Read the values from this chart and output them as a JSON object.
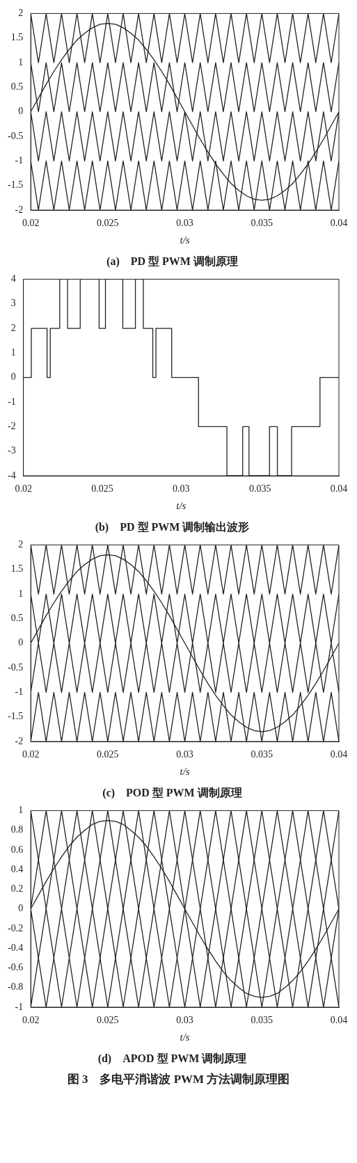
{
  "chart_data": [
    {
      "type": "line",
      "title": "(a)　PD 型 PWM 调制原理",
      "xlabel": "t/s",
      "xlim": [
        0.02,
        0.04
      ],
      "xticks": [
        0.02,
        0.025,
        0.03,
        0.035,
        0.04
      ],
      "ylim": [
        -2,
        2
      ],
      "yticks": [
        -2,
        -1.5,
        -1,
        -0.5,
        0,
        0.5,
        1,
        1.5,
        2
      ],
      "grid": false,
      "legend": false,
      "marker": "none",
      "x": [
        0.02,
        0.0205,
        0.021,
        0.0215,
        0.022,
        0.0225,
        0.023,
        0.0235,
        0.024,
        0.0245,
        0.025,
        0.0255,
        0.026,
        0.0265,
        0.027,
        0.0275,
        0.028,
        0.0285,
        0.029,
        0.0295,
        0.03,
        0.0305,
        0.031,
        0.0315,
        0.032,
        0.0325,
        0.033,
        0.0335,
        0.034,
        0.0345,
        0.035,
        0.0355,
        0.036,
        0.0365,
        0.037,
        0.0375,
        0.038,
        0.0385,
        0.039,
        0.0395,
        0.04
      ],
      "series": [
        {
          "color": "#222222",
          "values": [
            2,
            1,
            2,
            1,
            2,
            1,
            2,
            1,
            2,
            1,
            2,
            1,
            2,
            1,
            2,
            1,
            2,
            1,
            2,
            1,
            2,
            1,
            2,
            1,
            2,
            1,
            2,
            1,
            2,
            1,
            2,
            1,
            2,
            1,
            2,
            1,
            2,
            1,
            2,
            1,
            2
          ]
        },
        {
          "color": "#222222",
          "values": [
            1,
            0,
            1,
            0,
            1,
            0,
            1,
            0,
            1,
            0,
            1,
            0,
            1,
            0,
            1,
            0,
            1,
            0,
            1,
            0,
            1,
            0,
            1,
            0,
            1,
            0,
            1,
            0,
            1,
            0,
            1,
            0,
            1,
            0,
            1,
            0,
            1,
            0,
            1,
            0,
            1
          ]
        },
        {
          "color": "#222222",
          "values": [
            0,
            -1,
            0,
            -1,
            0,
            -1,
            0,
            -1,
            0,
            -1,
            0,
            -1,
            0,
            -1,
            0,
            -1,
            0,
            -1,
            0,
            -1,
            0,
            -1,
            0,
            -1,
            0,
            -1,
            0,
            -1,
            0,
            -1,
            0,
            -1,
            0,
            -1,
            0,
            -1,
            0,
            -1,
            0,
            -1,
            0
          ]
        },
        {
          "color": "#222222",
          "values": [
            -1,
            -2,
            -1,
            -2,
            -1,
            -2,
            -1,
            -2,
            -1,
            -2,
            -1,
            -2,
            -1,
            -2,
            -1,
            -2,
            -1,
            -2,
            -1,
            -2,
            -1,
            -2,
            -1,
            -2,
            -1,
            -2,
            -1,
            -2,
            -1,
            -2,
            -1,
            -2,
            -1,
            -2,
            -1,
            -2,
            -1,
            -2,
            -1,
            -2,
            -1
          ]
        },
        {
          "color": "#222222",
          "values": [
            0,
            0.28,
            0.56,
            0.82,
            1.06,
            1.27,
            1.46,
            1.6,
            1.71,
            1.78,
            1.8,
            1.78,
            1.71,
            1.6,
            1.46,
            1.27,
            1.06,
            0.82,
            0.56,
            0.28,
            0,
            -0.28,
            -0.56,
            -0.82,
            -1.06,
            -1.27,
            -1.46,
            -1.6,
            -1.71,
            -1.78,
            -1.8,
            -1.78,
            -1.71,
            -1.6,
            -1.46,
            -1.27,
            -1.06,
            -0.82,
            -0.56,
            -0.28,
            0
          ]
        }
      ]
    },
    {
      "type": "step",
      "title": "(b)　PD 型 PWM 调制输出波形",
      "xlabel": "t/s",
      "xlim": [
        0.02,
        0.04
      ],
      "xticks": [
        0.02,
        0.025,
        0.03,
        0.035,
        0.04
      ],
      "ylim": [
        -4,
        4
      ],
      "yticks": [
        -4,
        -3,
        -2,
        -1,
        0,
        1,
        2,
        3,
        4
      ],
      "grid": false,
      "legend": false,
      "marker": "none",
      "x": [
        0.02,
        0.0205,
        0.0215,
        0.0217,
        0.0223,
        0.0228,
        0.0236,
        0.0248,
        0.0252,
        0.0263,
        0.0271,
        0.0276,
        0.0282,
        0.0284,
        0.0294,
        0.0311,
        0.0329,
        0.0339,
        0.0343,
        0.0356,
        0.0361,
        0.037,
        0.0388,
        0.04
      ],
      "series": [
        {
          "color": "#222222",
          "values": [
            0,
            2,
            0,
            2,
            4,
            2,
            4,
            2,
            4,
            2,
            4,
            2,
            0,
            2,
            0,
            -2,
            -4,
            -2,
            -4,
            -2,
            -4,
            -2,
            0,
            0
          ]
        }
      ]
    },
    {
      "type": "line",
      "title": "(c)　POD 型 PWM 调制原理",
      "xlabel": "t/s",
      "xlim": [
        0.02,
        0.04
      ],
      "xticks": [
        0.02,
        0.025,
        0.03,
        0.035,
        0.04
      ],
      "ylim": [
        -2,
        2
      ],
      "yticks": [
        -2,
        -1.5,
        -1,
        -0.5,
        0,
        0.5,
        1,
        1.5,
        2
      ],
      "grid": false,
      "legend": false,
      "marker": "none",
      "x": [
        0.02,
        0.0205,
        0.021,
        0.0215,
        0.022,
        0.0225,
        0.023,
        0.0235,
        0.024,
        0.0245,
        0.025,
        0.0255,
        0.026,
        0.0265,
        0.027,
        0.0275,
        0.028,
        0.0285,
        0.029,
        0.0295,
        0.03,
        0.0305,
        0.031,
        0.0315,
        0.032,
        0.0325,
        0.033,
        0.0335,
        0.034,
        0.0345,
        0.035,
        0.0355,
        0.036,
        0.0365,
        0.037,
        0.0375,
        0.038,
        0.0385,
        0.039,
        0.0395,
        0.04
      ],
      "series": [
        {
          "color": "#222222",
          "values": [
            2,
            1,
            2,
            1,
            2,
            1,
            2,
            1,
            2,
            1,
            2,
            1,
            2,
            1,
            2,
            1,
            2,
            1,
            2,
            1,
            2,
            1,
            2,
            1,
            2,
            1,
            2,
            1,
            2,
            1,
            2,
            1,
            2,
            1,
            2,
            1,
            2,
            1,
            2,
            1,
            2
          ]
        },
        {
          "color": "#222222",
          "values": [
            1,
            0,
            1,
            0,
            1,
            0,
            1,
            0,
            1,
            0,
            1,
            0,
            1,
            0,
            1,
            0,
            1,
            0,
            1,
            0,
            1,
            0,
            1,
            0,
            1,
            0,
            1,
            0,
            1,
            0,
            1,
            0,
            1,
            0,
            1,
            0,
            1,
            0,
            1,
            0,
            1
          ]
        },
        {
          "color": "#222222",
          "values": [
            -1,
            0,
            -1,
            0,
            -1,
            0,
            -1,
            0,
            -1,
            0,
            -1,
            0,
            -1,
            0,
            -1,
            0,
            -1,
            0,
            -1,
            0,
            -1,
            0,
            -1,
            0,
            -1,
            0,
            -1,
            0,
            -1,
            0,
            -1,
            0,
            -1,
            0,
            -1,
            0,
            -1,
            0,
            -1,
            0,
            -1
          ]
        },
        {
          "color": "#222222",
          "values": [
            -2,
            -1,
            -2,
            -1,
            -2,
            -1,
            -2,
            -1,
            -2,
            -1,
            -2,
            -1,
            -2,
            -1,
            -2,
            -1,
            -2,
            -1,
            -2,
            -1,
            -2,
            -1,
            -2,
            -1,
            -2,
            -1,
            -2,
            -1,
            -2,
            -1,
            -2,
            -1,
            -2,
            -1,
            -2,
            -1,
            -2,
            -1,
            -2,
            -1,
            -2
          ]
        },
        {
          "color": "#222222",
          "values": [
            0,
            0.28,
            0.56,
            0.82,
            1.06,
            1.27,
            1.46,
            1.6,
            1.71,
            1.78,
            1.8,
            1.78,
            1.71,
            1.6,
            1.46,
            1.27,
            1.06,
            0.82,
            0.56,
            0.28,
            0,
            -0.28,
            -0.56,
            -0.82,
            -1.06,
            -1.27,
            -1.46,
            -1.6,
            -1.71,
            -1.78,
            -1.8,
            -1.78,
            -1.71,
            -1.6,
            -1.46,
            -1.27,
            -1.06,
            -0.82,
            -0.56,
            -0.28,
            0
          ]
        }
      ]
    },
    {
      "type": "line",
      "title": "(d)　APOD 型 PWM 调制原理",
      "xlabel": "t/s",
      "xlim": [
        0.02,
        0.04
      ],
      "xticks": [
        0.02,
        0.025,
        0.03,
        0.035,
        0.04
      ],
      "ylim": [
        -1,
        1
      ],
      "yticks": [
        -1,
        -0.8,
        -0.6,
        -0.4,
        -0.2,
        0,
        0.2,
        0.4,
        0.6,
        0.8,
        1
      ],
      "grid": false,
      "legend": false,
      "marker": "none",
      "annotations": [
        "图 3　多电平消谐波 PWM 方法调制原理图"
      ],
      "x": [
        0.02,
        0.0205,
        0.021,
        0.0215,
        0.022,
        0.0225,
        0.023,
        0.0235,
        0.024,
        0.0245,
        0.025,
        0.0255,
        0.026,
        0.0265,
        0.027,
        0.0275,
        0.028,
        0.0285,
        0.029,
        0.0295,
        0.03,
        0.0305,
        0.031,
        0.0315,
        0.032,
        0.0325,
        0.033,
        0.0335,
        0.034,
        0.0345,
        0.035,
        0.0355,
        0.036,
        0.0365,
        0.037,
        0.0375,
        0.038,
        0.0385,
        0.039,
        0.0395,
        0.04
      ],
      "series": [
        {
          "color": "#222222",
          "x": [
            0.02,
            0.021,
            0.022,
            0.023,
            0.024,
            0.025,
            0.026,
            0.027,
            0.028,
            0.029,
            0.03,
            0.031,
            0.032,
            0.033,
            0.034,
            0.035,
            0.036,
            0.037,
            0.038,
            0.039,
            0.04
          ],
          "values": [
            1,
            0,
            -1,
            0,
            1,
            0,
            -1,
            0,
            1,
            0,
            -1,
            0,
            1,
            0,
            -1,
            0,
            1,
            0,
            -1,
            0,
            1
          ]
        },
        {
          "color": "#222222",
          "x": [
            0.02,
            0.021,
            0.022,
            0.023,
            0.024,
            0.025,
            0.026,
            0.027,
            0.028,
            0.029,
            0.03,
            0.031,
            0.032,
            0.033,
            0.034,
            0.035,
            0.036,
            0.037,
            0.038,
            0.039,
            0.04
          ],
          "values": [
            0,
            1,
            0,
            -1,
            0,
            1,
            0,
            -1,
            0,
            1,
            0,
            -1,
            0,
            1,
            0,
            -1,
            0,
            1,
            0,
            -1,
            0
          ]
        },
        {
          "color": "#222222",
          "x": [
            0.02,
            0.021,
            0.022,
            0.023,
            0.024,
            0.025,
            0.026,
            0.027,
            0.028,
            0.029,
            0.03,
            0.031,
            0.032,
            0.033,
            0.034,
            0.035,
            0.036,
            0.037,
            0.038,
            0.039,
            0.04
          ],
          "values": [
            -1,
            0,
            1,
            0,
            -1,
            0,
            1,
            0,
            -1,
            0,
            1,
            0,
            -1,
            0,
            1,
            0,
            -1,
            0,
            1,
            0,
            -1
          ]
        },
        {
          "color": "#222222",
          "x": [
            0.02,
            0.021,
            0.022,
            0.023,
            0.024,
            0.025,
            0.026,
            0.027,
            0.028,
            0.029,
            0.03,
            0.031,
            0.032,
            0.033,
            0.034,
            0.035,
            0.036,
            0.037,
            0.038,
            0.039,
            0.04
          ],
          "values": [
            0,
            -1,
            0,
            1,
            0,
            -1,
            0,
            1,
            0,
            -1,
            0,
            1,
            0,
            -1,
            0,
            1,
            0,
            -1,
            0,
            1,
            0
          ]
        },
        {
          "color": "#222222",
          "values": [
            0,
            0.14,
            0.28,
            0.41,
            0.53,
            0.64,
            0.73,
            0.8,
            0.86,
            0.89,
            0.9,
            0.89,
            0.86,
            0.8,
            0.73,
            0.64,
            0.53,
            0.41,
            0.28,
            0.14,
            0,
            -0.14,
            -0.28,
            -0.41,
            -0.53,
            -0.64,
            -0.73,
            -0.8,
            -0.86,
            -0.89,
            -0.9,
            -0.89,
            -0.86,
            -0.8,
            -0.73,
            -0.64,
            -0.53,
            -0.41,
            -0.28,
            -0.14,
            0
          ]
        }
      ]
    }
  ]
}
